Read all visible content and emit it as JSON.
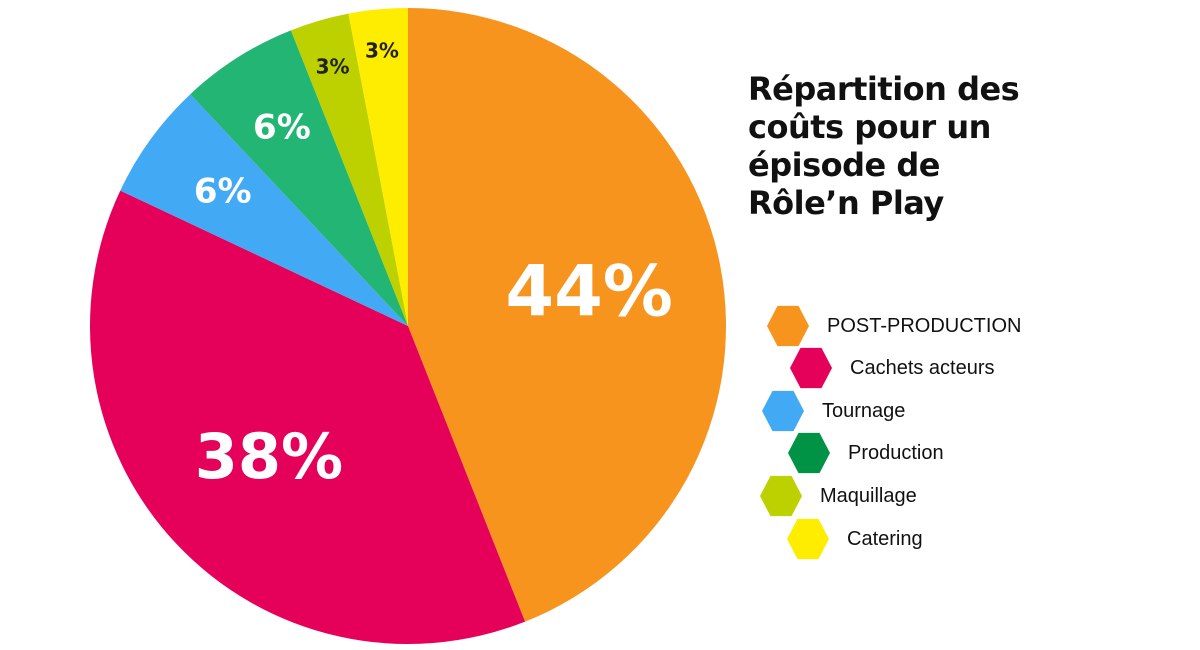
{
  "chart_data": {
    "type": "pie",
    "title": "Répartition des coûts pour un épisode de Rôle’n Play",
    "title_lines": [
      "Répartition des",
      "coûts pour un",
      "épisode de",
      "Rôle’n Play"
    ],
    "legend_position": "right",
    "slices": [
      {
        "name": "POST-PRODUCTION",
        "value": 44,
        "label": "44%",
        "color": "#F7941E",
        "label_color": "#ffffff"
      },
      {
        "name": "Cachets acteurs",
        "value": 38,
        "label": "38%",
        "color": "#E5005A",
        "label_color": "#ffffff"
      },
      {
        "name": "Tournage",
        "value": 6,
        "label": "6%",
        "color": "#42A9F4",
        "label_color": "#ffffff"
      },
      {
        "name": "Production",
        "value": 6,
        "label": "6%",
        "color": "#22B573",
        "label_color": "#ffffff"
      },
      {
        "name": "Maquillage",
        "value": 3,
        "label": "3%",
        "color": "#BDD000",
        "label_color": "#222222"
      },
      {
        "name": "Catering",
        "value": 3,
        "label": "3%",
        "color": "#FFED00",
        "label_color": "#222222"
      }
    ],
    "legend": [
      {
        "label": "POST-PRODUCTION",
        "color": "#F7941E"
      },
      {
        "label": "Cachets acteurs",
        "color": "#E5005A"
      },
      {
        "label": "Tournage",
        "color": "#42A9F4"
      },
      {
        "label": "Production",
        "color": "#009245"
      },
      {
        "label": "Maquillage",
        "color": "#BDD000"
      },
      {
        "label": "Catering",
        "color": "#FFED00"
      }
    ]
  }
}
